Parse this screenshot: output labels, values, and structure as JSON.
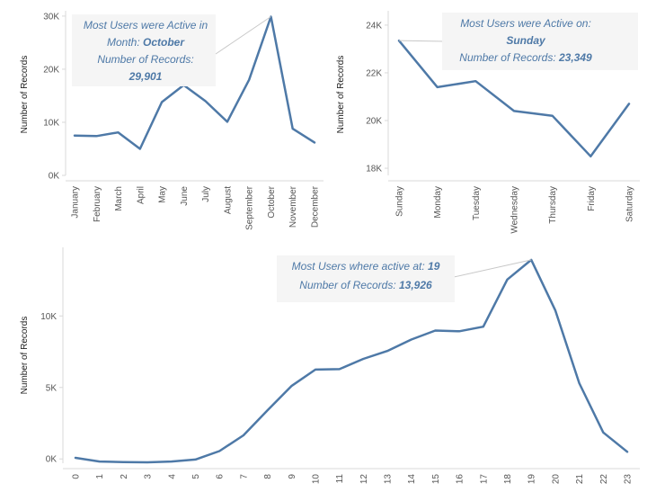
{
  "chart_data": [
    {
      "type": "line",
      "ylabel": "Number of Records",
      "categories": [
        "January",
        "February",
        "March",
        "April",
        "May",
        "June",
        "July",
        "August",
        "September",
        "October",
        "November",
        "December"
      ],
      "values": [
        7500,
        7400,
        8100,
        5000,
        13800,
        17000,
        14000,
        10100,
        18000,
        29901,
        8800,
        6200
      ],
      "ylim": [
        0,
        31000
      ],
      "yticks": [
        0,
        10000,
        20000,
        30000
      ],
      "ytick_labels": [
        "0K",
        "10K",
        "20K",
        "30K"
      ],
      "grid": false,
      "annotation": {
        "target_index": 9,
        "lines": [
          [
            {
              "t": "Most Users were Active in",
              "b": false
            }
          ],
          [
            {
              "t": "Month: ",
              "b": false
            },
            {
              "t": "October",
              "b": true
            }
          ],
          [
            {
              "t": "Number of Records:",
              "b": false
            }
          ],
          [
            {
              "t": "29,901",
              "b": true
            }
          ]
        ]
      }
    },
    {
      "type": "line",
      "ylabel": "Number of Records",
      "categories": [
        "Sunday",
        "Monday",
        "Tuesday",
        "Wednesday",
        "Thursday",
        "Friday",
        "Saturday"
      ],
      "values": [
        23349,
        21400,
        21650,
        20400,
        20200,
        18500,
        20700
      ],
      "ylim": [
        17700,
        24600
      ],
      "yticks": [
        18000,
        20000,
        22000,
        24000
      ],
      "ytick_labels": [
        "18K",
        "20K",
        "22K",
        "24K"
      ],
      "grid": false,
      "annotation": {
        "target_index": 0,
        "lines": [
          [
            {
              "t": "Most Users were Active  on:",
              "b": false
            }
          ],
          [
            {
              "t": "Sunday",
              "b": true
            }
          ],
          [
            {
              "t": "Number of Records: ",
              "b": false
            },
            {
              "t": "23,349",
              "b": true
            }
          ]
        ]
      }
    },
    {
      "type": "line",
      "ylabel": "Number of Records",
      "categories": [
        "0",
        "1",
        "2",
        "3",
        "4",
        "5",
        "6",
        "7",
        "8",
        "9",
        "10",
        "11",
        "12",
        "13",
        "14",
        "15",
        "16",
        "17",
        "18",
        "19",
        "20",
        "21",
        "22",
        "23"
      ],
      "values": [
        80,
        -180,
        -220,
        -240,
        -180,
        -40,
        550,
        1650,
        3400,
        5100,
        6250,
        6280,
        7000,
        7550,
        8350,
        8980,
        8930,
        9250,
        12550,
        13926,
        10400,
        5300,
        1850,
        500
      ],
      "ylim": [
        -300,
        14800
      ],
      "yticks": [
        0,
        5000,
        10000
      ],
      "ytick_labels": [
        "0K",
        "5K",
        "10K"
      ],
      "grid": false,
      "annotation": {
        "target_index": 19,
        "lines": [
          [
            {
              "t": "Most Users where active at: ",
              "b": false
            },
            {
              "t": "19",
              "b": true
            }
          ],
          [
            {
              "t": "Number of Records: ",
              "b": false
            },
            {
              "t": "13,926",
              "b": true
            }
          ]
        ]
      }
    }
  ]
}
